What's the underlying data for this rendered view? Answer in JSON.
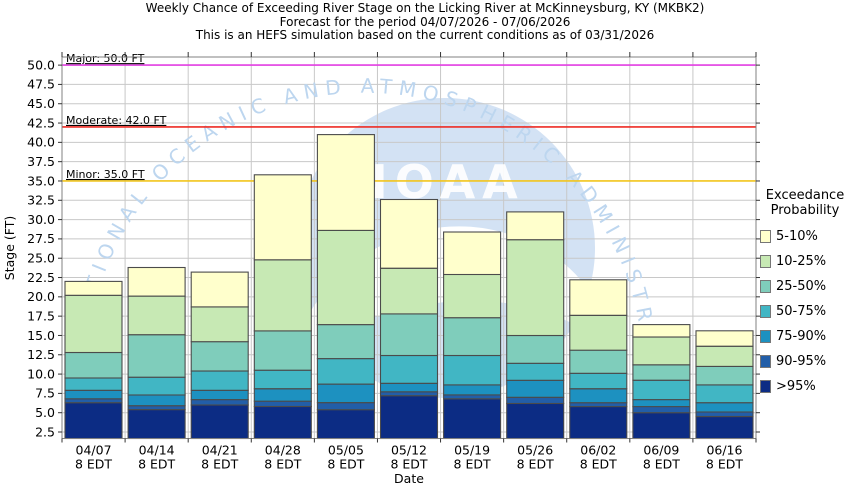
{
  "title": {
    "line1": "Weekly Chance of Exceeding River Stage on the Licking River at McKinneysburg, KY (MKBK2)",
    "line2": "Forecast for the period 04/07/2026 - 07/06/2026",
    "line3": "This is an HEFS simulation based on the current conditions as of 03/31/2026"
  },
  "axes": {
    "x_label": "Date",
    "y_label": "Stage (FT)",
    "x_tick_sub_label": "8 EDT"
  },
  "legend": {
    "title_line1": "Exceedance",
    "title_line2": "Probability",
    "items": [
      {
        "label": "5-10%",
        "color": "#ffffcc"
      },
      {
        "label": "10-25%",
        "color": "#c7e9b4"
      },
      {
        "label": "25-50%",
        "color": "#7fcdbb"
      },
      {
        "label": "50-75%",
        "color": "#41b6c4"
      },
      {
        "label": "75-90%",
        "color": "#1d91c0"
      },
      {
        "label": "90-95%",
        "color": "#225ea8"
      },
      {
        "label": ">95%",
        "color": "#0c2c84"
      }
    ]
  },
  "thresholds": [
    {
      "name": "Major",
      "label": "Major: 50.0 FT",
      "value": 50.0,
      "color": "#e33fe3"
    },
    {
      "name": "Moderate",
      "label": "Moderate: 42.0 FT",
      "value": 42.0,
      "color": "#ee2c24"
    },
    {
      "name": "Minor",
      "label": "Minor: 35.0 FT",
      "value": 35.0,
      "color": "#f2c51d"
    }
  ],
  "watermark": {
    "wordmark": "NOAA",
    "ring_text": "NATIONAL OCEANIC AND ATMOSPHERIC ADMINISTRATION"
  },
  "style": {
    "grid_color": "#c8c8c8",
    "frame_color": "#808080",
    "tick_color": "#333333",
    "bar_border": "#4b4b4b",
    "watermark_fill": "#d3e2f4",
    "watermark_ring_text": "#bdd6ef",
    "wordmark_color": "#ffffff"
  },
  "chart_data": {
    "type": "bar",
    "stacked": true,
    "note": "Each series value is the cumulative top of that exceedance-probability band in FT (bands stack bottom-to-top from the axis floor).",
    "title": "Weekly Chance of Exceeding River Stage on the Licking River at McKinneysburg, KY (MKBK2)",
    "xlabel": "Date",
    "ylabel": "Stage (FT)",
    "categories": [
      "04/07",
      "04/14",
      "04/21",
      "04/28",
      "05/05",
      "05/12",
      "05/19",
      "05/26",
      "06/02",
      "06/09",
      "06/16"
    ],
    "category_sub_label": "8 EDT",
    "series": [
      {
        "name": ">95%",
        "color": "#0c2c84",
        "values": [
          6.3,
          5.4,
          6.0,
          5.8,
          5.4,
          7.2,
          6.8,
          6.2,
          5.8,
          5.0,
          4.5
        ]
      },
      {
        "name": "90-95%",
        "color": "#225ea8",
        "values": [
          6.8,
          5.9,
          6.7,
          6.5,
          6.3,
          7.7,
          7.3,
          7.0,
          6.3,
          5.8,
          5.1
        ]
      },
      {
        "name": "75-90%",
        "color": "#1d91c0",
        "values": [
          7.9,
          7.3,
          7.9,
          8.1,
          8.7,
          8.8,
          8.6,
          9.2,
          8.1,
          6.7,
          6.3
        ]
      },
      {
        "name": "50-75%",
        "color": "#41b6c4",
        "values": [
          9.5,
          9.6,
          10.4,
          10.5,
          12.0,
          12.4,
          12.4,
          11.4,
          10.1,
          9.2,
          8.6
        ]
      },
      {
        "name": "25-50%",
        "color": "#7fcdbb",
        "values": [
          12.8,
          15.1,
          14.2,
          15.6,
          16.4,
          17.8,
          17.3,
          15.0,
          13.1,
          11.2,
          11.0
        ]
      },
      {
        "name": "10-25%",
        "color": "#c7e9b4",
        "values": [
          20.2,
          20.1,
          18.7,
          24.8,
          28.6,
          23.7,
          22.9,
          27.4,
          17.6,
          14.8,
          13.6
        ]
      },
      {
        "name": "5-10%",
        "color": "#ffffcc",
        "values": [
          22.0,
          23.8,
          23.2,
          35.8,
          41.0,
          32.6,
          28.4,
          31.0,
          22.2,
          16.4,
          15.6
        ]
      }
    ],
    "ylim": [
      1.66,
      51.05
    ],
    "y_ticks": [
      2.5,
      5.0,
      7.5,
      10.0,
      12.5,
      15.0,
      17.5,
      20.0,
      22.5,
      25.0,
      27.5,
      30.0,
      32.5,
      35.0,
      37.5,
      40.0,
      42.5,
      45.0,
      47.5,
      50.0
    ],
    "grid": true,
    "legend_position": "right",
    "thresholds": [
      {
        "label": "Major: 50.0 FT",
        "value": 50.0
      },
      {
        "label": "Moderate: 42.0 FT",
        "value": 42.0
      },
      {
        "label": "Minor: 35.0 FT",
        "value": 35.0
      }
    ]
  }
}
